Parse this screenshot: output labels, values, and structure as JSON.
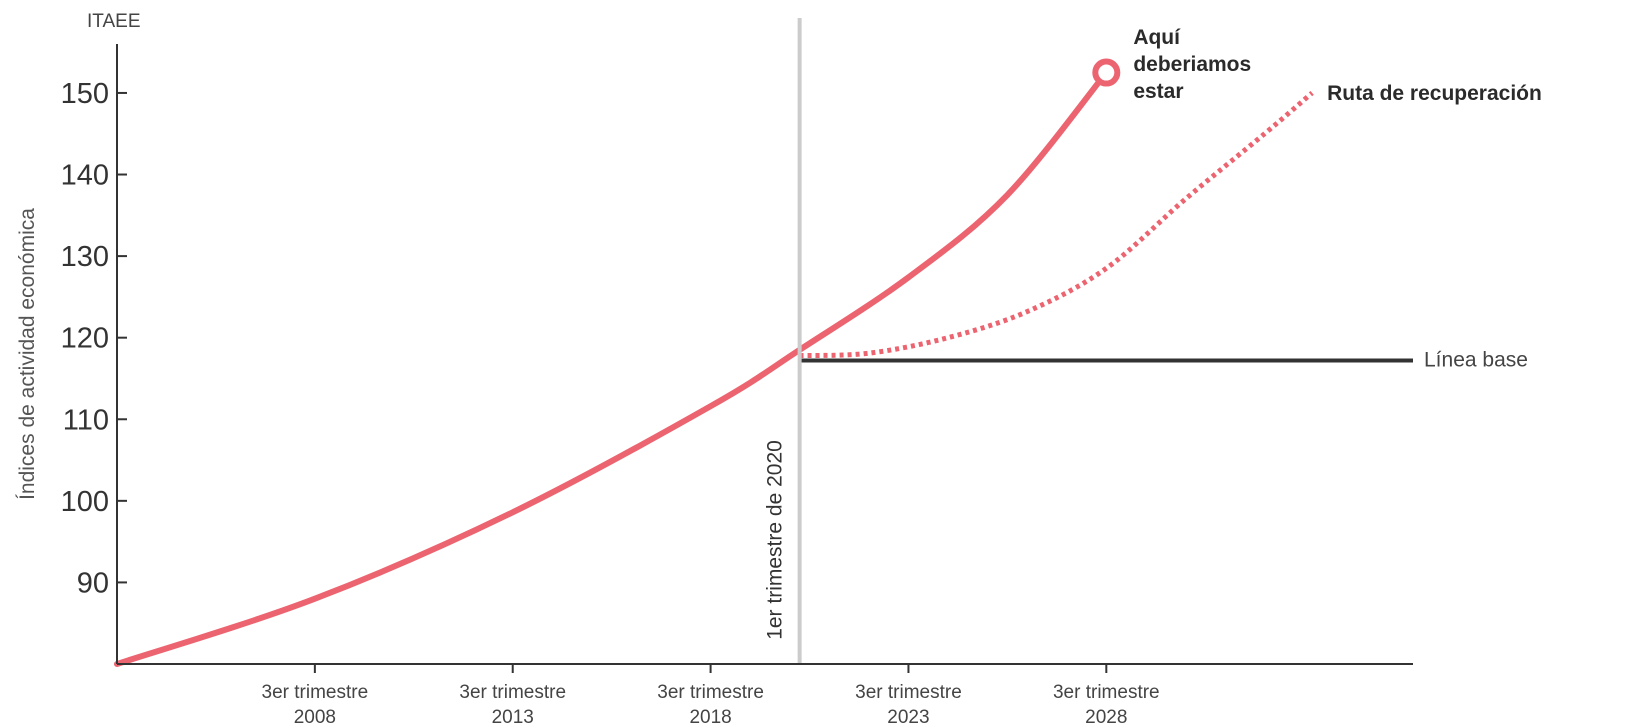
{
  "chart_data": {
    "type": "line",
    "unit_label": "ITAEE",
    "ylabel": "Índices de actividad económica",
    "xlabel": "",
    "ylim": [
      80,
      156
    ],
    "yticks": [
      90,
      100,
      110,
      120,
      130,
      140,
      150
    ],
    "xlim": [
      2003,
      2035.75
    ],
    "xticks": [
      {
        "x": 2008.0,
        "line1": "3er trimestre",
        "line2": "2008"
      },
      {
        "x": 2013.0,
        "line1": "3er trimestre",
        "line2": "2013"
      },
      {
        "x": 2018.0,
        "line1": "3er trimestre",
        "line2": "2018"
      },
      {
        "x": 2023.0,
        "line1": "3er trimestre",
        "line2": "2023"
      },
      {
        "x": 2028.0,
        "line1": "3er trimestre",
        "line2": "2028"
      }
    ],
    "vertical_marker": {
      "x": 2020.25,
      "label": "1er trimestre de 2020",
      "color": "#cccccc"
    },
    "series": [
      {
        "key": "historical",
        "style": "solid",
        "color": "#ec6470",
        "points": [
          [
            2003.0,
            80.0
          ],
          [
            2008.0,
            88.0
          ],
          [
            2013.0,
            98.6
          ],
          [
            2018.0,
            111.6
          ],
          [
            2020.25,
            118.5
          ],
          [
            2023.0,
            127.4
          ],
          [
            2025.5,
            137.5
          ],
          [
            2028.0,
            152.5
          ]
        ]
      },
      {
        "key": "recovery",
        "style": "dotted",
        "color": "#ec6470",
        "points": [
          [
            2020.25,
            117.8
          ],
          [
            2022.0,
            118.1
          ],
          [
            2024.0,
            120.0
          ],
          [
            2026.0,
            123.2
          ],
          [
            2028.0,
            128.5
          ],
          [
            2030.0,
            137.0
          ],
          [
            2032.0,
            145.0
          ],
          [
            2033.2,
            150.0
          ]
        ]
      },
      {
        "key": "baseline",
        "style": "solid",
        "color": "#333333",
        "points": [
          [
            2020.25,
            117.2
          ],
          [
            2035.75,
            117.2
          ]
        ]
      }
    ],
    "annotations": {
      "endpoint": {
        "x": 2028.0,
        "y": 152.5,
        "lines": [
          "Aquí",
          "deberiamos",
          "estar"
        ]
      },
      "recovery_label": "Ruta de recuperación",
      "baseline_label": "Línea base"
    },
    "grid": false,
    "legend": "none"
  }
}
